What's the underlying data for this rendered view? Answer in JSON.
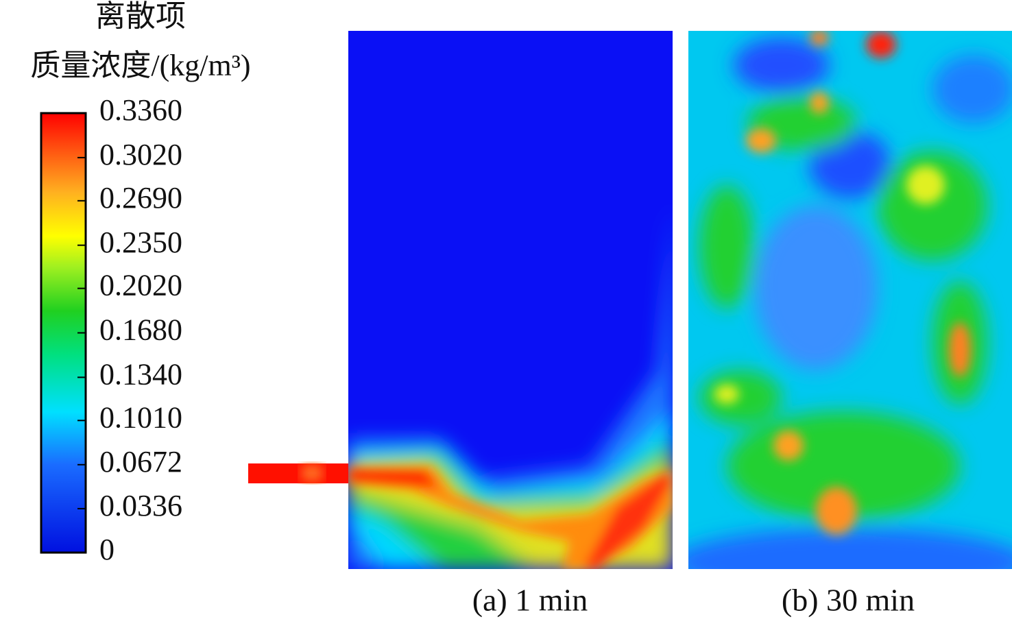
{
  "colorbar": {
    "title_lines": [
      "离散项",
      "质量浓度/(kg/m³)"
    ],
    "ticks": [
      {
        "value": 0.336,
        "label": "0.3360"
      },
      {
        "value": 0.302,
        "label": "0.3020"
      },
      {
        "value": 0.269,
        "label": "0.2690"
      },
      {
        "value": 0.235,
        "label": "0.2350"
      },
      {
        "value": 0.202,
        "label": "0.2020"
      },
      {
        "value": 0.168,
        "label": "0.1680"
      },
      {
        "value": 0.134,
        "label": "0.1340"
      },
      {
        "value": 0.101,
        "label": "0.1010"
      },
      {
        "value": 0.0672,
        "label": "0.0672"
      },
      {
        "value": 0.0336,
        "label": "0.0336"
      },
      0
    ]
  },
  "panels": [
    {
      "caption": "(a) 1 min"
    },
    {
      "caption": "(b) 30 min"
    }
  ]
}
